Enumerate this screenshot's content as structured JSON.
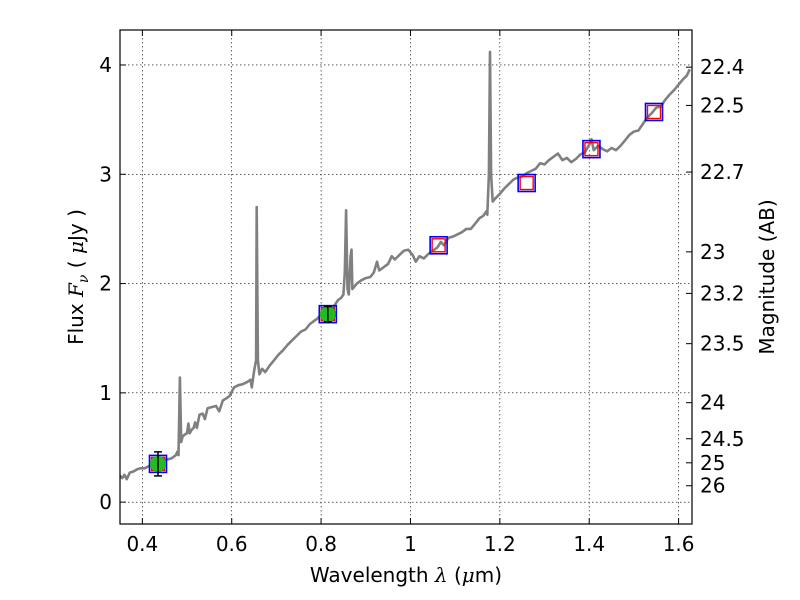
{
  "chart_data": {
    "type": "line",
    "xlabel": "Wavelength  λ (μm)",
    "ylabel": "Flux  F_ν  ( μJy )",
    "ylabel_right": "Magnitude (AB)",
    "xlim": [
      0.35,
      1.63
    ],
    "ylim": [
      -0.2,
      4.32
    ],
    "x_ticks": [
      0.4,
      0.6,
      0.8,
      1.0,
      1.2,
      1.4,
      1.6
    ],
    "x_tick_labels": [
      "0.4",
      "0.6",
      "0.8",
      "1",
      "1.2",
      "1.4",
      "1.6"
    ],
    "y_ticks": [
      0,
      1,
      2,
      3,
      4
    ],
    "y_tick_labels": [
      "0",
      "1",
      "2",
      "3",
      "4"
    ],
    "right_ticks": [
      {
        "flux": 3.98,
        "label": "22.4"
      },
      {
        "flux": 3.63,
        "label": "22.5"
      },
      {
        "flux": 3.02,
        "label": "22.7"
      },
      {
        "flux": 2.29,
        "label": "23"
      },
      {
        "flux": 1.91,
        "label": "23.2"
      },
      {
        "flux": 1.45,
        "label": "23.5"
      },
      {
        "flux": 0.91,
        "label": "24"
      },
      {
        "flux": 0.58,
        "label": "24.5"
      },
      {
        "flux": 0.36,
        "label": "25"
      },
      {
        "flux": 0.15,
        "label": "26"
      }
    ],
    "grid": true,
    "series": [
      {
        "kind": "spectrum",
        "color": "#808080",
        "points": [
          [
            0.35,
            0.24
          ],
          [
            0.355,
            0.22
          ],
          [
            0.36,
            0.25
          ],
          [
            0.365,
            0.21
          ],
          [
            0.372,
            0.27
          ],
          [
            0.38,
            0.28
          ],
          [
            0.388,
            0.3
          ],
          [
            0.395,
            0.31
          ],
          [
            0.405,
            0.31
          ],
          [
            0.415,
            0.33
          ],
          [
            0.425,
            0.35
          ],
          [
            0.435,
            0.37
          ],
          [
            0.445,
            0.38
          ],
          [
            0.455,
            0.39
          ],
          [
            0.465,
            0.4
          ],
          [
            0.475,
            0.43
          ],
          [
            0.478,
            0.46
          ],
          [
            0.481,
            0.43
          ],
          [
            0.484,
            1.14
          ],
          [
            0.487,
            0.55
          ],
          [
            0.49,
            0.6
          ],
          [
            0.495,
            0.62
          ],
          [
            0.5,
            0.63
          ],
          [
            0.503,
            0.72
          ],
          [
            0.506,
            0.63
          ],
          [
            0.51,
            0.66
          ],
          [
            0.515,
            0.68
          ],
          [
            0.518,
            0.73
          ],
          [
            0.522,
            0.68
          ],
          [
            0.528,
            0.8
          ],
          [
            0.535,
            0.81
          ],
          [
            0.54,
            0.76
          ],
          [
            0.546,
            0.86
          ],
          [
            0.555,
            0.87
          ],
          [
            0.565,
            0.88
          ],
          [
            0.572,
            0.83
          ],
          [
            0.58,
            0.93
          ],
          [
            0.588,
            0.95
          ],
          [
            0.595,
            0.97
          ],
          [
            0.605,
            1.05
          ],
          [
            0.615,
            1.07
          ],
          [
            0.625,
            1.08
          ],
          [
            0.635,
            1.1
          ],
          [
            0.642,
            1.12
          ],
          [
            0.645,
            1.05
          ],
          [
            0.65,
            1.2
          ],
          [
            0.6545,
            1.3
          ],
          [
            0.656,
            2.7
          ],
          [
            0.6585,
            1.3
          ],
          [
            0.662,
            1.17
          ],
          [
            0.668,
            1.22
          ],
          [
            0.675,
            1.19
          ],
          [
            0.685,
            1.25
          ],
          [
            0.695,
            1.3
          ],
          [
            0.705,
            1.35
          ],
          [
            0.715,
            1.39
          ],
          [
            0.725,
            1.44
          ],
          [
            0.735,
            1.48
          ],
          [
            0.745,
            1.52
          ],
          [
            0.755,
            1.56
          ],
          [
            0.765,
            1.58
          ],
          [
            0.775,
            1.63
          ],
          [
            0.785,
            1.66
          ],
          [
            0.792,
            1.68
          ],
          [
            0.8,
            1.72
          ],
          [
            0.81,
            1.71
          ],
          [
            0.82,
            1.75
          ],
          [
            0.83,
            1.8
          ],
          [
            0.838,
            1.85
          ],
          [
            0.845,
            1.87
          ],
          [
            0.85,
            1.9
          ],
          [
            0.853,
            2.1
          ],
          [
            0.856,
            2.67
          ],
          [
            0.859,
            1.95
          ],
          [
            0.862,
            1.9
          ],
          [
            0.866,
            2.25
          ],
          [
            0.868,
            2.31
          ],
          [
            0.87,
            1.95
          ],
          [
            0.88,
            2.0
          ],
          [
            0.89,
            2.03
          ],
          [
            0.9,
            2.05
          ],
          [
            0.91,
            2.06
          ],
          [
            0.918,
            2.1
          ],
          [
            0.925,
            2.2
          ],
          [
            0.93,
            2.12
          ],
          [
            0.94,
            2.15
          ],
          [
            0.95,
            2.18
          ],
          [
            0.958,
            2.25
          ],
          [
            0.965,
            2.22
          ],
          [
            0.975,
            2.26
          ],
          [
            0.985,
            2.3
          ],
          [
            0.995,
            2.31
          ],
          [
            1.005,
            2.26
          ],
          [
            1.012,
            2.2
          ],
          [
            1.02,
            2.25
          ],
          [
            1.03,
            2.23
          ],
          [
            1.04,
            2.27
          ],
          [
            1.05,
            2.3
          ],
          [
            1.06,
            2.33
          ],
          [
            1.068,
            2.38
          ],
          [
            1.075,
            2.35
          ],
          [
            1.085,
            2.42
          ],
          [
            1.095,
            2.43
          ],
          [
            1.105,
            2.45
          ],
          [
            1.115,
            2.47
          ],
          [
            1.125,
            2.5
          ],
          [
            1.135,
            2.5
          ],
          [
            1.145,
            2.55
          ],
          [
            1.155,
            2.6
          ],
          [
            1.163,
            2.62
          ],
          [
            1.17,
            2.66
          ],
          [
            1.172,
            2.63
          ],
          [
            1.1755,
            3.0
          ],
          [
            1.178,
            4.12
          ],
          [
            1.1805,
            3.0
          ],
          [
            1.184,
            2.75
          ],
          [
            1.19,
            2.78
          ],
          [
            1.2,
            2.82
          ],
          [
            1.21,
            2.87
          ],
          [
            1.22,
            2.91
          ],
          [
            1.23,
            2.95
          ],
          [
            1.24,
            2.97
          ],
          [
            1.25,
            2.98
          ],
          [
            1.26,
            3.01
          ],
          [
            1.27,
            3.03
          ],
          [
            1.28,
            3.05
          ],
          [
            1.29,
            3.1
          ],
          [
            1.3,
            3.09
          ],
          [
            1.31,
            3.13
          ],
          [
            1.32,
            3.16
          ],
          [
            1.33,
            3.19
          ],
          [
            1.34,
            3.13
          ],
          [
            1.35,
            3.15
          ],
          [
            1.36,
            3.11
          ],
          [
            1.37,
            3.14
          ],
          [
            1.38,
            3.18
          ],
          [
            1.39,
            3.2
          ],
          [
            1.4,
            3.27
          ],
          [
            1.405,
            3.32
          ],
          [
            1.41,
            3.22
          ],
          [
            1.42,
            3.26
          ],
          [
            1.43,
            3.23
          ],
          [
            1.44,
            3.21
          ],
          [
            1.45,
            3.24
          ],
          [
            1.46,
            3.22
          ],
          [
            1.47,
            3.26
          ],
          [
            1.48,
            3.31
          ],
          [
            1.49,
            3.36
          ],
          [
            1.5,
            3.39
          ],
          [
            1.51,
            3.4
          ],
          [
            1.52,
            3.46
          ],
          [
            1.53,
            3.52
          ],
          [
            1.54,
            3.56
          ],
          [
            1.55,
            3.61
          ],
          [
            1.56,
            3.62
          ],
          [
            1.57,
            3.68
          ],
          [
            1.58,
            3.73
          ],
          [
            1.59,
            3.77
          ],
          [
            1.6,
            3.82
          ],
          [
            1.61,
            3.87
          ],
          [
            1.618,
            3.9
          ],
          [
            1.625,
            3.96
          ]
        ]
      },
      {
        "kind": "observed",
        "color": "#22bb22",
        "points": [
          {
            "x": 0.435,
            "y": 0.35,
            "yerr": 0.11
          },
          {
            "x": 0.815,
            "y": 1.72,
            "yerr": 0.07
          }
        ]
      },
      {
        "kind": "model",
        "colors": [
          "#0000ff",
          "#ff0000"
        ],
        "points": [
          {
            "x": 0.435,
            "y": 0.35
          },
          {
            "x": 0.815,
            "y": 1.72
          },
          {
            "x": 1.063,
            "y": 2.35
          },
          {
            "x": 1.26,
            "y": 2.92
          },
          {
            "x": 1.405,
            "y": 3.23
          },
          {
            "x": 1.545,
            "y": 3.57
          }
        ]
      }
    ]
  }
}
